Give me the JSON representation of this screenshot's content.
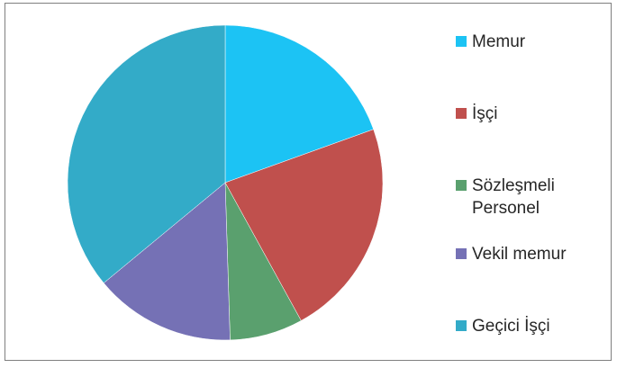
{
  "chart_data": {
    "type": "pie",
    "categories": [
      "Memur",
      "İşçi",
      "Sözleşmeli\nPersonel",
      "Vekil memur",
      "Geçici İşçi"
    ],
    "values": [
      19.5,
      22.5,
      7.5,
      14.5,
      36
    ],
    "colors": [
      "#1cc3f4",
      "#c0504d",
      "#5aa06e",
      "#7571b5",
      "#33abc8"
    ],
    "title": "",
    "legend_position": "right",
    "start_angle_deg": 0,
    "direction": "clockwise"
  }
}
